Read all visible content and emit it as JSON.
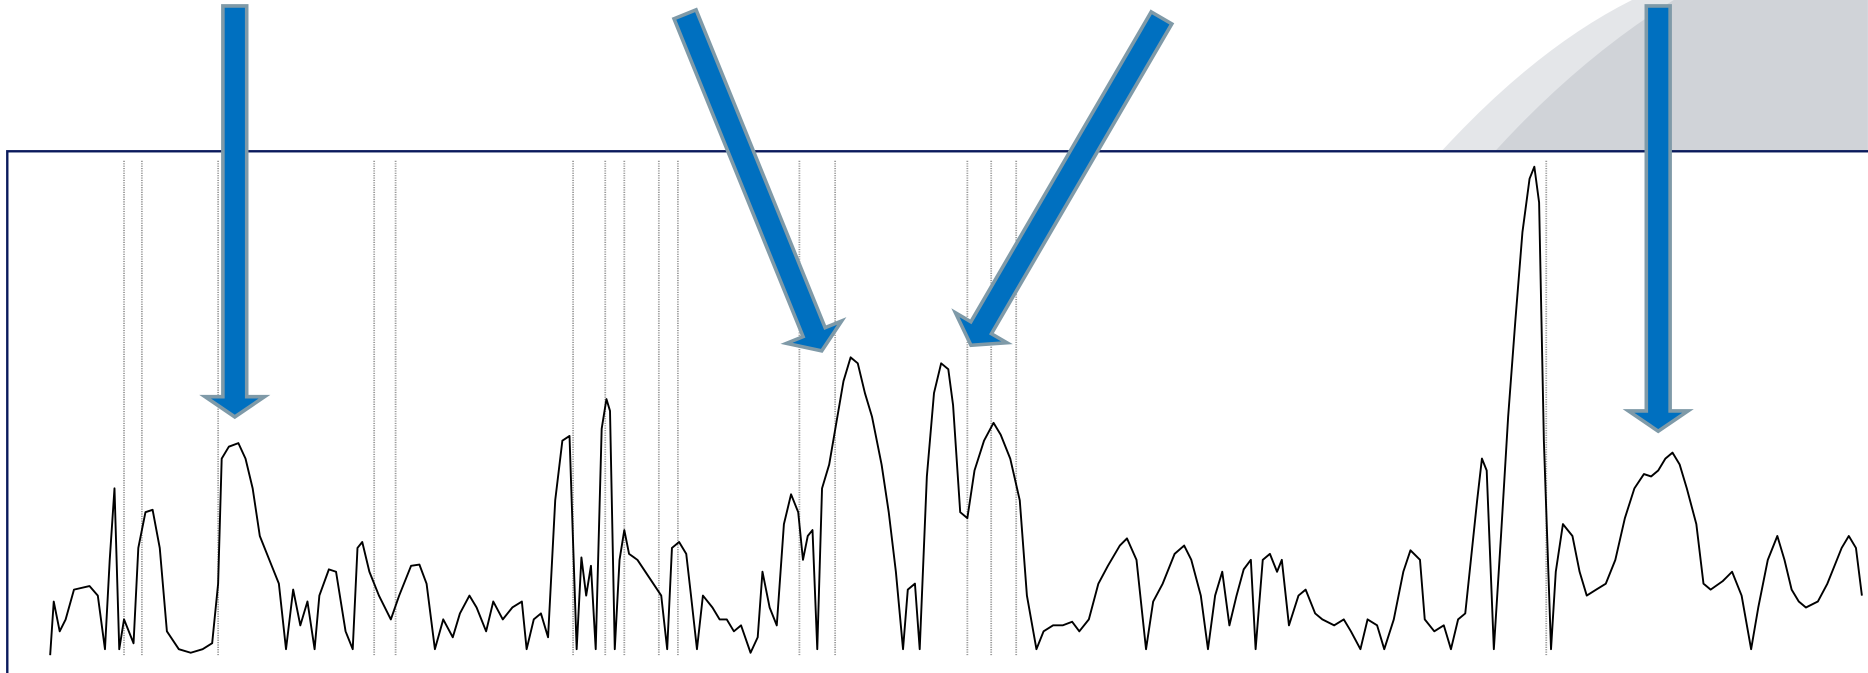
{
  "chart_data": {
    "type": "line",
    "color": "#000000",
    "marker_color": "#9a9a9a",
    "xlim": [
      0,
      1568
    ],
    "ylim": [
      0,
      420
    ],
    "markers": [
      104,
      119,
      183,
      314,
      332,
      481,
      508,
      524,
      553,
      569,
      671,
      701,
      812,
      832,
      853,
      1298
    ],
    "x": [
      42,
      45,
      50,
      55,
      62,
      75,
      82,
      88,
      92,
      96,
      100,
      104,
      112,
      116,
      122,
      128,
      134,
      140,
      150,
      160,
      170,
      178,
      183,
      186,
      192,
      200,
      206,
      212,
      218,
      228,
      234,
      240,
      246,
      252,
      258,
      264,
      268,
      276,
      282,
      290,
      296,
      300,
      304,
      310,
      318,
      328,
      335,
      345,
      352,
      358,
      365,
      372,
      380,
      386,
      394,
      400,
      408,
      414,
      422,
      430,
      438,
      442,
      448,
      454,
      460,
      466,
      472,
      478,
      484,
      488,
      492,
      496,
      500,
      505,
      509,
      512,
      516,
      520,
      524,
      528,
      535,
      545,
      555,
      560,
      564,
      570,
      576,
      580,
      585,
      590,
      598,
      604,
      610,
      616,
      622,
      630,
      636,
      640,
      646,
      652,
      658,
      664,
      670,
      674,
      678,
      682,
      686,
      690,
      696,
      702,
      708,
      714,
      720,
      726,
      732,
      740,
      746,
      752,
      758,
      762,
      768,
      772,
      778,
      784,
      790,
      796,
      800,
      806,
      812,
      818,
      826,
      834,
      840,
      848,
      856,
      862,
      870,
      876,
      884,
      892,
      900,
      906,
      914,
      922,
      930,
      940,
      946,
      954,
      962,
      968,
      976,
      986,
      994,
      1000,
      1008,
      1014,
      1020,
      1026,
      1032,
      1038,
      1044,
      1050,
      1054,
      1060,
      1066,
      1072,
      1076,
      1082,
      1090,
      1096,
      1104,
      1110,
      1120,
      1128,
      1134,
      1142,
      1148,
      1156,
      1162,
      1170,
      1178,
      1184,
      1192,
      1196,
      1204,
      1212,
      1218,
      1224,
      1230,
      1240,
      1244,
      1248,
      1254,
      1260,
      1266,
      1272,
      1278,
      1284,
      1288,
      1292,
      1296,
      1302,
      1306,
      1312,
      1320,
      1326,
      1332,
      1340,
      1348,
      1356,
      1364,
      1372,
      1380,
      1386,
      1392,
      1398,
      1404,
      1410,
      1416,
      1424,
      1430,
      1436,
      1446,
      1454,
      1462,
      1470,
      1476,
      1484,
      1492,
      1498,
      1504,
      1510,
      1516,
      1526,
      1534,
      1540,
      1546,
      1552,
      1558,
      1563
    ],
    "values": [
      0,
      45,
      20,
      30,
      55,
      58,
      50,
      5,
      80,
      140,
      5,
      30,
      10,
      90,
      120,
      122,
      90,
      20,
      5,
      2,
      5,
      10,
      60,
      165,
      175,
      178,
      165,
      140,
      100,
      75,
      60,
      5,
      55,
      25,
      45,
      5,
      50,
      72,
      70,
      20,
      5,
      90,
      95,
      70,
      50,
      30,
      50,
      75,
      76,
      60,
      5,
      30,
      15,
      35,
      50,
      40,
      20,
      45,
      30,
      40,
      45,
      5,
      30,
      35,
      15,
      130,
      180,
      184,
      5,
      82,
      50,
      75,
      5,
      190,
      215,
      205,
      5,
      80,
      105,
      85,
      80,
      65,
      50,
      5,
      90,
      95,
      85,
      50,
      5,
      50,
      40,
      30,
      30,
      20,
      25,
      2,
      15,
      70,
      40,
      25,
      110,
      135,
      120,
      80,
      100,
      105,
      5,
      140,
      160,
      195,
      230,
      250,
      245,
      220,
      200,
      160,
      120,
      70,
      5,
      55,
      60,
      5,
      150,
      220,
      245,
      240,
      210,
      120,
      115,
      155,
      180,
      195,
      185,
      165,
      130,
      50,
      5,
      20,
      25,
      25,
      28,
      20,
      30,
      60,
      75,
      92,
      98,
      80,
      5,
      45,
      60,
      85,
      92,
      80,
      50,
      5,
      50,
      70,
      25,
      50,
      72,
      80,
      5,
      80,
      85,
      70,
      80,
      25,
      50,
      55,
      35,
      30,
      25,
      30,
      20,
      5,
      30,
      25,
      5,
      30,
      70,
      88,
      80,
      30,
      20,
      25,
      5,
      30,
      35,
      130,
      165,
      155,
      5,
      100,
      200,
      280,
      355,
      400,
      410,
      380,
      180,
      5,
      70,
      110,
      100,
      70,
      50,
      55,
      60,
      80,
      115,
      140,
      152,
      150,
      155,
      165,
      170,
      160,
      140,
      110,
      60,
      55,
      62,
      70,
      50,
      5,
      40,
      80,
      100,
      80,
      55,
      45,
      40,
      45,
      60,
      75,
      90,
      100,
      90,
      50
    ]
  }
}
